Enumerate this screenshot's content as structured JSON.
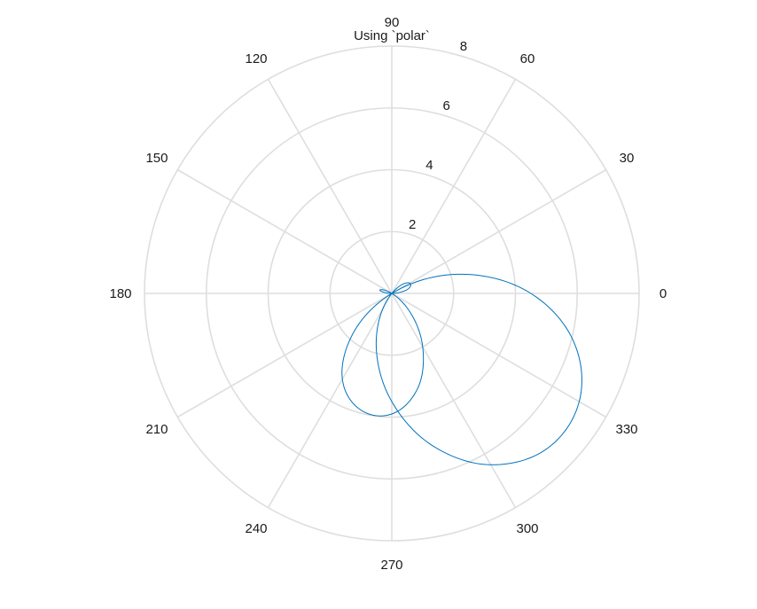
{
  "chart_data": {
    "type": "line",
    "coordinate_system": "polar",
    "title": "Using `polar`",
    "theta_ticks_deg": [
      0,
      30,
      60,
      90,
      120,
      150,
      180,
      210,
      240,
      270,
      300,
      330
    ],
    "theta_tick_labels": [
      "0",
      "30",
      "60",
      "90",
      "120",
      "150",
      "180",
      "210",
      "240",
      "270",
      "300",
      "330"
    ],
    "r_ticks": [
      2,
      4,
      6,
      8
    ],
    "r_tick_labels": [
      "2",
      "4",
      "6",
      "8"
    ],
    "rlim": [
      0,
      8
    ],
    "grid": true,
    "series": [
      {
        "color": "#0072BD",
        "theta_deg": [
          0,
          15,
          30,
          45,
          60,
          75,
          90,
          105,
          120,
          135,
          150,
          165,
          180,
          195,
          210,
          225,
          240,
          255,
          270,
          285,
          300,
          315,
          330,
          345,
          360
        ],
        "r": [
          0.0,
          0.54,
          0.67,
          0.28,
          -0.6,
          -1.92,
          -3.5,
          -5.1,
          -6.4,
          -7.1,
          -7.0,
          -6.1,
          -4.5,
          -2.4,
          -0.2,
          1.7,
          3.2,
          3.9,
          3.9,
          3.2,
          2.0,
          0.8,
          -0.06,
          -0.4,
          0.0
        ]
      }
    ]
  }
}
